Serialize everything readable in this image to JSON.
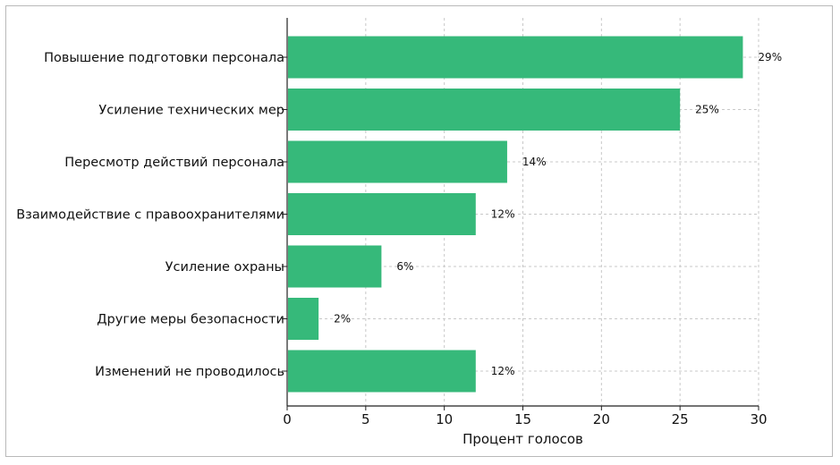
{
  "chart_data": {
    "type": "bar",
    "orientation": "horizontal",
    "categories": [
      "Повышение подготовки персонала",
      "Усиление технических мер",
      "Пересмотр действий персонала",
      "Взаимодействие с правоохранителями",
      "Усиление охраны",
      "Другие меры безопасности",
      "Изменений не проводилось"
    ],
    "values": [
      29,
      25,
      14,
      12,
      6,
      2,
      12
    ],
    "data_labels": [
      "29%",
      "25%",
      "14%",
      "12%",
      "6%",
      "2%",
      "12%"
    ],
    "x_ticks": [
      "0",
      "5",
      "10",
      "15",
      "20",
      "25",
      "30"
    ],
    "xlabel": "Процент голосов",
    "ylabel": "",
    "xlim": [
      0,
      30
    ],
    "grid": true,
    "bar_color": "#36b97a",
    "grid_color": "#c8c8c8"
  }
}
